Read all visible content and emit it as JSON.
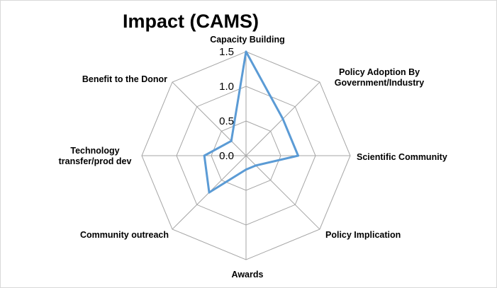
{
  "chart_data": {
    "type": "radar",
    "title": "Impact (CAMS)",
    "categories": [
      "Capacity  Building",
      "Policy Adoption By Government/Industry",
      "Scientific Community",
      "Policy Implication",
      "Awards",
      "Community outreach",
      "Technology transfer/prod dev",
      "Benefit to the Donor"
    ],
    "category_lines": [
      [
        "Capacity  Building"
      ],
      [
        "Policy Adoption By",
        "Government/Industry"
      ],
      [
        "Scientific Community"
      ],
      [
        "Policy Implication"
      ],
      [
        "Awards"
      ],
      [
        "Community outreach"
      ],
      [
        "Technology",
        "transfer/prod dev"
      ],
      [
        "Benefit to the Donor"
      ]
    ],
    "series": [
      {
        "values": [
          1.5,
          0.75,
          0.75,
          0.2,
          0.2,
          0.75,
          0.6,
          0.3
        ]
      }
    ],
    "r_ticks": [
      "0.0",
      "0.5",
      "1.0",
      "1.5"
    ],
    "r_tick_values": [
      0,
      0.5,
      1.0,
      1.5
    ],
    "rlim": [
      0,
      1.5
    ],
    "grid": true,
    "legend": "none",
    "colors": {
      "series": "#5b9bd5",
      "grid": "#a6a6a6"
    }
  }
}
